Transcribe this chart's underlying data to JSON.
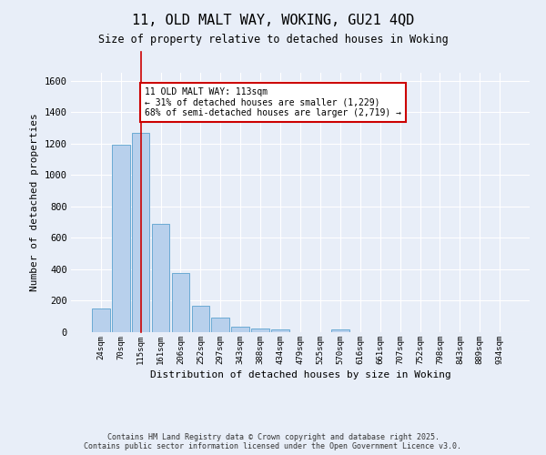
{
  "title_line1": "11, OLD MALT WAY, WOKING, GU21 4QD",
  "title_line2": "Size of property relative to detached houses in Woking",
  "xlabel": "Distribution of detached houses by size in Woking",
  "ylabel": "Number of detached properties",
  "bar_labels": [
    "24sqm",
    "70sqm",
    "115sqm",
    "161sqm",
    "206sqm",
    "252sqm",
    "297sqm",
    "343sqm",
    "388sqm",
    "434sqm",
    "479sqm",
    "525sqm",
    "570sqm",
    "616sqm",
    "661sqm",
    "707sqm",
    "752sqm",
    "798sqm",
    "843sqm",
    "889sqm",
    "934sqm"
  ],
  "bar_values": [
    150,
    1190,
    1270,
    690,
    375,
    170,
    95,
    35,
    25,
    20,
    0,
    0,
    15,
    0,
    0,
    0,
    0,
    0,
    0,
    0,
    0
  ],
  "bar_color": "#b8d0ec",
  "bar_edge_color": "#6aaad4",
  "background_color": "#e8eef8",
  "grid_color": "#ffffff",
  "red_line_x": 2.0,
  "annotation_text": "11 OLD MALT WAY: 113sqm\n← 31% of detached houses are smaller (1,229)\n68% of semi-detached houses are larger (2,719) →",
  "annotation_box_color": "#ffffff",
  "annotation_box_edge": "#cc0000",
  "ylim": [
    0,
    1650
  ],
  "yticks": [
    0,
    200,
    400,
    600,
    800,
    1000,
    1200,
    1400,
    1600
  ],
  "footnote1": "Contains HM Land Registry data © Crown copyright and database right 2025.",
  "footnote2": "Contains public sector information licensed under the Open Government Licence v3.0."
}
